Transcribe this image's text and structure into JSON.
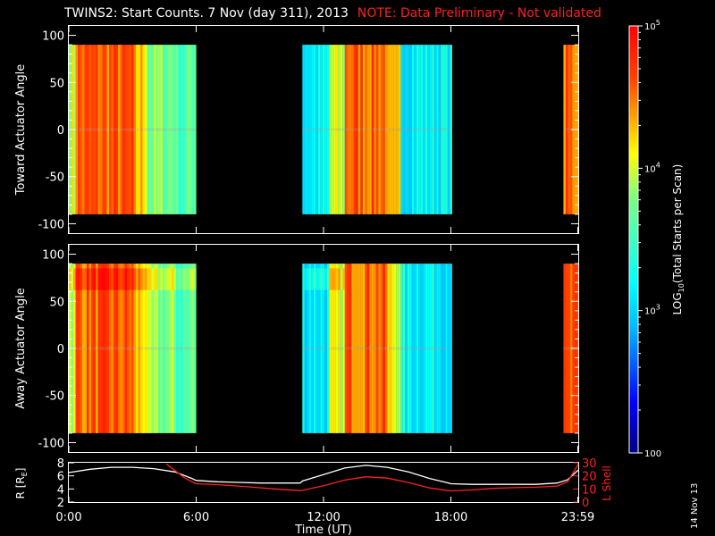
{
  "title": {
    "main": "TWINS2: Start Counts.  7 Nov (day 311), 2013",
    "note": "NOTE: Data Preliminary - Not validated",
    "note_color": "#ff2020"
  },
  "stamp": "14 Nov 13",
  "chart_data": [
    {
      "type": "heatmap",
      "panel": "top",
      "ylabel": "Toward Actuator Angle",
      "ylim": [
        -110,
        110
      ],
      "yticks": [
        100,
        50,
        0,
        -50,
        -100
      ],
      "xlim_hours": [
        0,
        24
      ],
      "data_y_range": [
        -90,
        90
      ],
      "coverage_hours": [
        [
          0.0,
          6.0
        ],
        [
          11.0,
          17.95
        ],
        [
          23.3,
          24.0
        ]
      ],
      "value_profile": "log10 start counts; high (~4.5-5) near 0:00-3:00, moderate (~3.5-4.2) 3:00-6:00, low (~3.0-3.3) 11:00-13:00 and 15:30-17:00, high (~4.3-4.7) 13:00-15:00, high after 23:20"
    },
    {
      "type": "heatmap",
      "panel": "middle",
      "ylabel": "Away Actuator Angle",
      "ylim": [
        -110,
        110
      ],
      "yticks": [
        100,
        50,
        0,
        -50,
        -100
      ],
      "xlim_hours": [
        0,
        24
      ],
      "data_y_range": [
        -90,
        90
      ],
      "coverage_hours": [
        [
          0.0,
          6.0
        ],
        [
          11.0,
          17.95
        ],
        [
          23.3,
          24.0
        ]
      ],
      "value_profile": "log10 start counts; similar to top panel with enhanced band near +70 deg"
    },
    {
      "type": "line",
      "panel": "bottom",
      "xlabel": "Time (UT)",
      "xtick_labels": [
        "0:00",
        "6:00",
        "12:00",
        "18:00",
        "23:59"
      ],
      "xtick_hours": [
        0,
        6,
        12,
        18,
        23.98
      ],
      "left_axis": {
        "label": "R [R",
        "label_sub": "E",
        "label_end": "]",
        "ylim": [
          2,
          8
        ],
        "yticks": [
          2,
          4,
          6,
          8
        ]
      },
      "right_axis": {
        "label": "L Shell",
        "ylim": [
          0,
          30
        ],
        "yticks": [
          0,
          10,
          20,
          30
        ],
        "color": "#ff2020"
      },
      "series": [
        {
          "axis": "left",
          "color": "#ffffff",
          "x": [
            0,
            1,
            2,
            3,
            4,
            5,
            5.8,
            6,
            7,
            8,
            9,
            10,
            10.9,
            11,
            12,
            13,
            14,
            15,
            16,
            17,
            17.9,
            18,
            19,
            20,
            21,
            22,
            23,
            23.5,
            24
          ],
          "y": [
            6.5,
            7.0,
            7.3,
            7.3,
            7.1,
            6.6,
            5.6,
            5.3,
            5.1,
            5.0,
            4.9,
            4.9,
            4.9,
            5.2,
            6.2,
            7.2,
            7.6,
            7.3,
            6.6,
            5.6,
            4.9,
            4.8,
            4.7,
            4.7,
            4.7,
            4.7,
            4.9,
            5.4,
            6.9
          ]
        },
        {
          "axis": "right",
          "color": "#ff2020",
          "x": [
            4.6,
            5.0,
            5.5,
            6.0,
            7,
            8,
            9,
            10,
            10.9,
            11,
            12,
            13,
            14,
            15,
            16,
            17,
            17.9,
            18,
            19,
            20,
            21,
            22,
            23,
            23.5,
            24
          ],
          "y": [
            29,
            24,
            18,
            14,
            13.3,
            12.2,
            10.9,
            9.7,
            8.7,
            8.9,
            12.5,
            16.8,
            19.3,
            18.3,
            14.9,
            10.8,
            8.7,
            8.5,
            9.3,
            10.4,
            11.0,
            11.3,
            12.2,
            15.4,
            29
          ]
        }
      ]
    }
  ],
  "colorbar": {
    "label_pre": "LOG",
    "label_sub": "10",
    "label_post": "(Total Starts per Scan)",
    "range_log10": [
      2,
      5
    ],
    "ticks": [
      {
        "log": 2,
        "base": "100",
        "exp": ""
      },
      {
        "log": 3,
        "base": "10",
        "exp": "3"
      },
      {
        "log": 4,
        "base": "10",
        "exp": "4"
      },
      {
        "log": 5,
        "base": "10",
        "exp": "5"
      }
    ]
  }
}
